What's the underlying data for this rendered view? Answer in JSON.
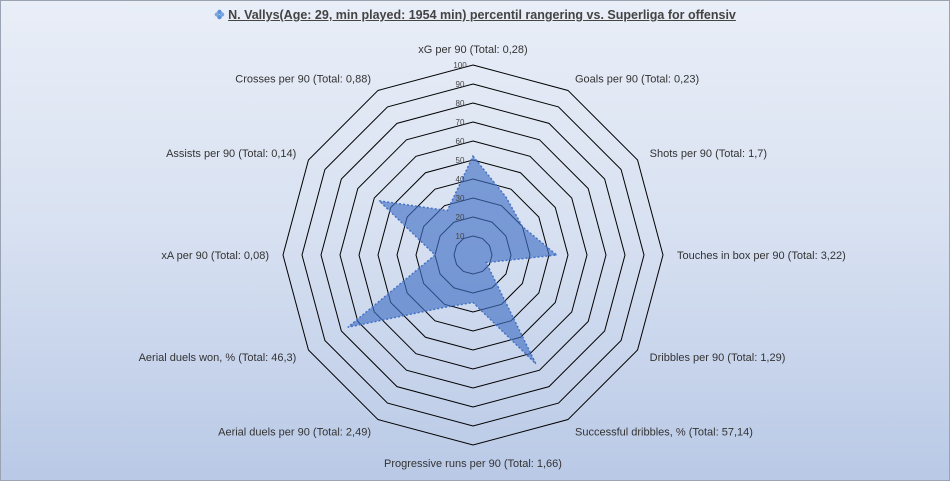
{
  "chart_data": {
    "type": "radar",
    "title": "N. Vallys(Age: 29, min played: 1954 min) percentil rangering vs. Superliga for offensiv",
    "title_icon": "clover-icon",
    "rlim": [
      0,
      100
    ],
    "ticks": [
      "10",
      "20",
      "30",
      "40",
      "50",
      "60",
      "70",
      "80",
      "90",
      "100"
    ],
    "categories": [
      "xG per 90 (Total: 0,28)",
      "Goals per 90 (Total: 0,23)",
      "Shots per 90 (Total: 1,7)",
      "Touches in box per 90 (Total: 3,22)",
      "Dribbles per 90 (Total: 1,29)",
      "Successful dribbles, % (Total: 57,14)",
      "Progressive runs per 90 (Total: 1,66)",
      "Aerial duels per 90 (Total: 2,49)",
      "Aerial duels won, % (Total: 46,3)",
      "xA per 90 (Total: 0,08)",
      "Assists per 90 (Total: 0,14)",
      "Crosses per 90 (Total: 0,88)"
    ],
    "series": [
      {
        "values": [
          52,
          35,
          30,
          44,
          8,
          66,
          25,
          32,
          76,
          20,
          57,
          27
        ]
      }
    ],
    "colors": {
      "fill": "#4472c4",
      "stroke": "#4472c4",
      "grid": "#000000"
    },
    "grid": true,
    "legend": "none"
  }
}
